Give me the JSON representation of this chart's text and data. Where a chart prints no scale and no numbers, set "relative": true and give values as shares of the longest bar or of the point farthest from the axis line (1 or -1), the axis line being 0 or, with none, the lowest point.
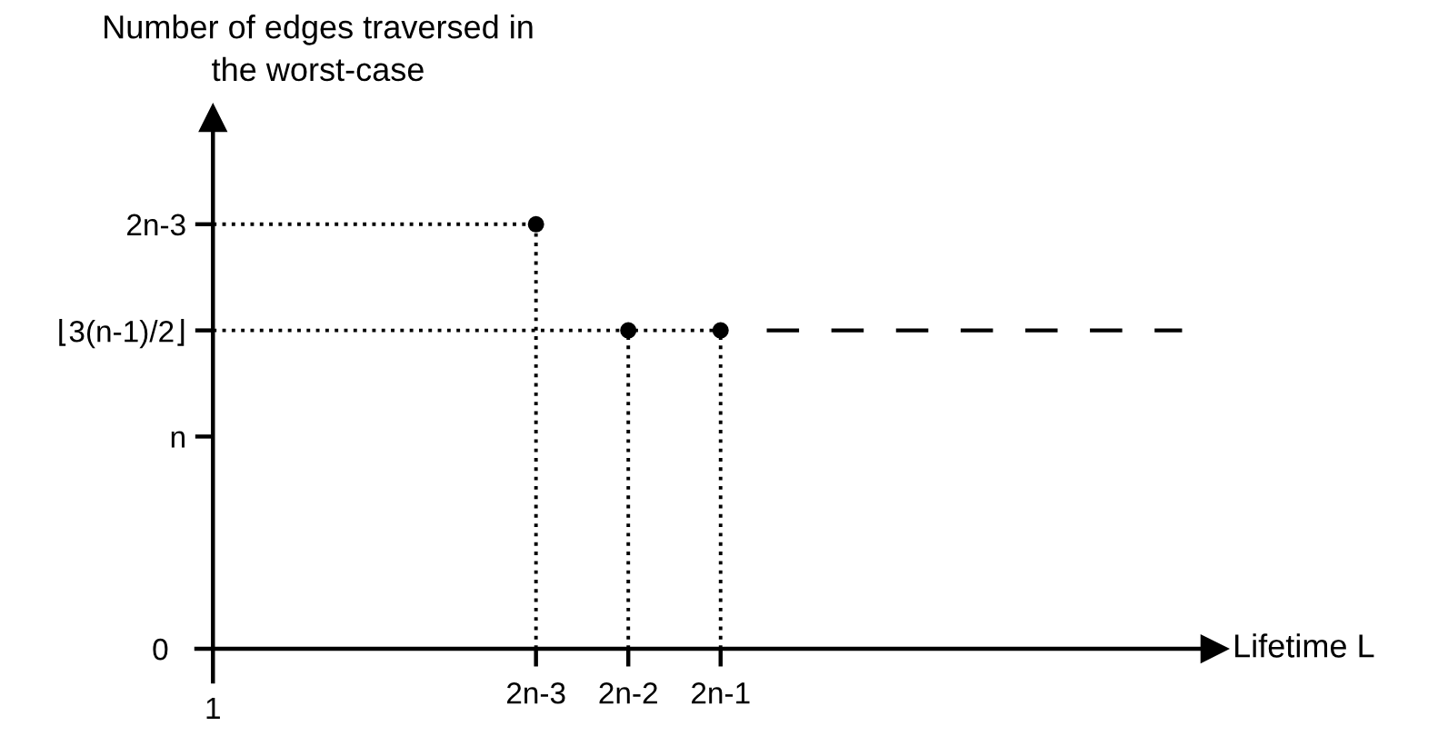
{
  "chart_data": {
    "type": "scatter",
    "relative": true,
    "ylabel": "Number of edges traversed in\nthe worst-case",
    "xlabel": "Lifetime L",
    "categories": [
      "1",
      null,
      null,
      null,
      null,
      null,
      null,
      "2n-3",
      null,
      "2n-2",
      null,
      "2n-1",
      null,
      null,
      null,
      null,
      null,
      null,
      null,
      null,
      null,
      null
    ],
    "series": [
      {
        "color": "#000000",
        "marker": "circle",
        "values": [
          null,
          null,
          null,
          null,
          null,
          null,
          null,
          1,
          null,
          0.75,
          null,
          0.75,
          null,
          null,
          null,
          null,
          null,
          null,
          null,
          null,
          null,
          null
        ]
      },
      {
        "type": "line",
        "color": "#000000",
        "line_style": "dashed",
        "values": [
          null,
          null,
          null,
          null,
          null,
          null,
          null,
          null,
          null,
          null,
          null,
          null,
          0.75,
          0.75,
          0.75,
          0.75,
          0.75,
          0.75,
          0.75,
          0.75,
          0.75,
          0.75
        ]
      }
    ],
    "annotations": [
      "0",
      {
        "text": "⌊3(n-1)/2⌋",
        "x": "2n-1",
        "y": 0.75
      },
      {
        "text": "2n-3",
        "x": "2n-3",
        "y": 1
      }
    ],
    "ref_lines": [
      {
        "axis": "y",
        "value": 0.5,
        "label": "n"
      }
    ],
    "grid": false,
    "legend": false
  }
}
